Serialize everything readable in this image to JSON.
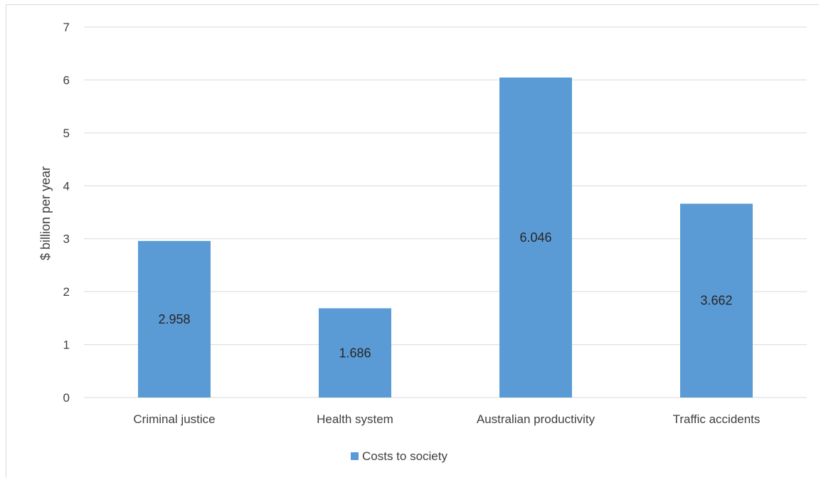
{
  "chart_data": {
    "type": "bar",
    "categories": [
      "Criminal justice",
      "Health system",
      "Australian productivity",
      "Traffic accidents"
    ],
    "series": [
      {
        "name": "Costs to society",
        "values": [
          2.958,
          1.686,
          6.046,
          3.662
        ]
      }
    ],
    "data_labels": [
      "2.958",
      "1.686",
      "6.046",
      "3.662"
    ],
    "y_ticks": [
      "0",
      "1",
      "2",
      "3",
      "4",
      "5",
      "6",
      "7"
    ],
    "ylabel": "$ billion per year",
    "xlabel": "",
    "ylim": [
      0,
      7
    ],
    "grid": true,
    "legend_position": "bottom",
    "colors": {
      "bar": "#5b9bd5",
      "grid": "#d9d9d9",
      "text": "#404040",
      "label": "#262626"
    }
  }
}
